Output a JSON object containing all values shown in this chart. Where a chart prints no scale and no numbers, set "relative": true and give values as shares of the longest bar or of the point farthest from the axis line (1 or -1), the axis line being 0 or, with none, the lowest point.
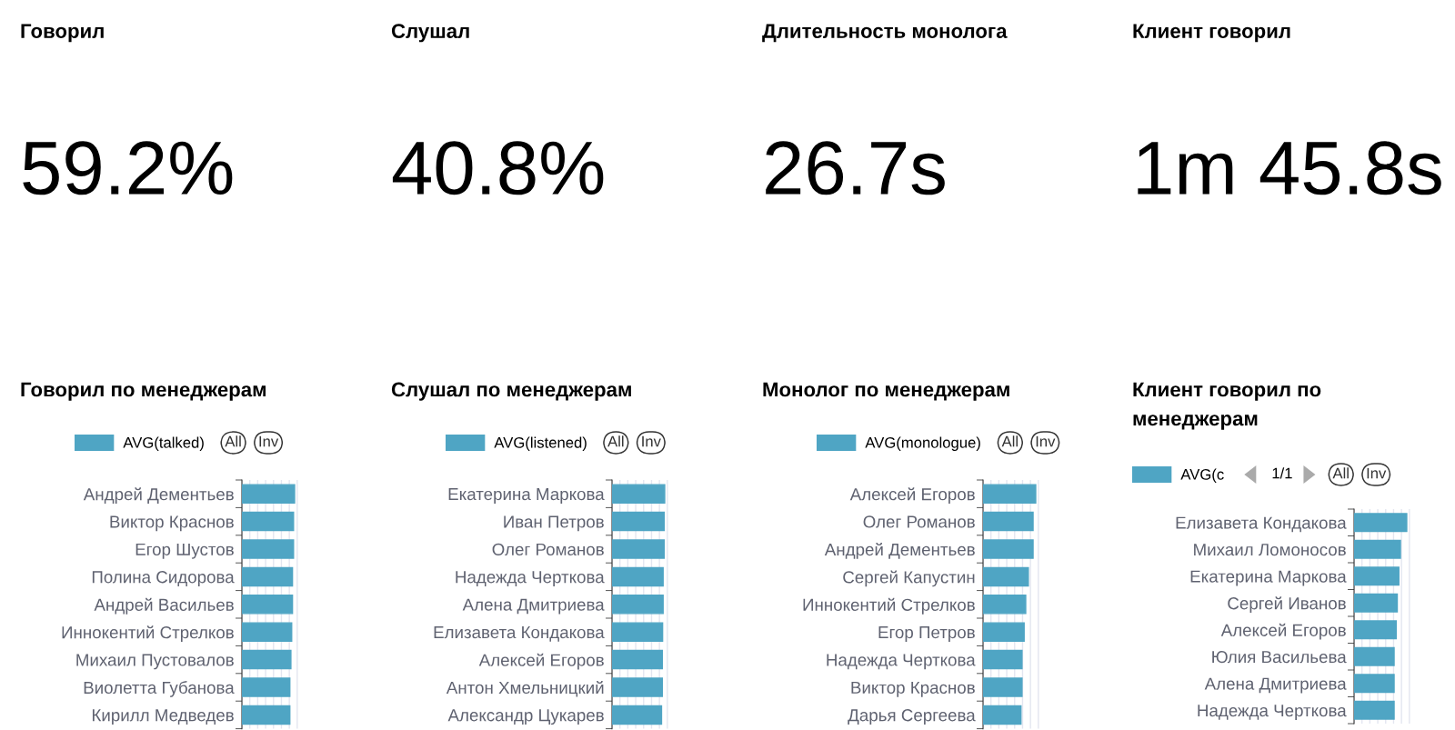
{
  "chart_data": [
    {
      "type": "other",
      "title": "Говорил",
      "annotations": [
        "59.2%"
      ]
    },
    {
      "type": "other",
      "title": "Слушал",
      "annotations": [
        "40.8%"
      ]
    },
    {
      "type": "other",
      "title": "Длительность монолога",
      "annotations": [
        "26.7s"
      ]
    },
    {
      "type": "other",
      "title": "Клиент говорил",
      "annotations": [
        "1m 45.8s"
      ]
    },
    {
      "type": "bar",
      "orientation": "horizontal",
      "relative": true,
      "title": "Говорил по менеджерам",
      "legend": "top",
      "grid": "x",
      "annotations": [
        "All",
        "Inv"
      ],
      "categories": [
        "Андрей Дементьев",
        "Виктор Краснов",
        "Егор Шустов",
        "Полина Сидорова",
        "Андрей Васильев",
        "Иннокентий Стрелков",
        "Михаил Пустовалов",
        "Виолетта Губанова",
        "Кирилл Медведев"
      ],
      "series": [
        {
          "name": "AVG(talked)",
          "color": "#4fa5c4",
          "values": [
            1,
            0.98,
            0.98,
            0.96,
            0.96,
            0.945,
            0.93,
            0.91,
            0.91
          ]
        }
      ]
    },
    {
      "type": "bar",
      "orientation": "horizontal",
      "relative": true,
      "title": "Слушал по менеджерам",
      "legend": "top",
      "grid": "x",
      "annotations": [
        "All",
        "Inv"
      ],
      "categories": [
        "Екатерина Маркова",
        "Иван Петров",
        "Олег Романов",
        "Надежда Черткова",
        "Алена Дмитриева",
        "Елизавета Кондакова",
        "Алексей Егоров",
        "Антон Хмельницкий",
        "Александр Цукарев"
      ],
      "series": [
        {
          "name": "AVG(listened)",
          "color": "#4fa5c4",
          "values": [
            1,
            0.99,
            0.99,
            0.97,
            0.97,
            0.96,
            0.955,
            0.955,
            0.94
          ]
        }
      ]
    },
    {
      "type": "bar",
      "orientation": "horizontal",
      "relative": true,
      "title": "Монолог по менеджерам",
      "legend": "top",
      "grid": "x",
      "annotations": [
        "All",
        "Inv"
      ],
      "categories": [
        "Алексей Егоров",
        "Олег Романов",
        "Андрей Дементьев",
        "Сергей Капустин",
        "Иннокентий Стрелков",
        "Егор Петров",
        "Надежда Черткова",
        "Виктор Краснов",
        "Дарья Сергеева"
      ],
      "series": [
        {
          "name": "AVG(monologue)",
          "color": "#4fa5c4",
          "values": [
            1,
            0.95,
            0.95,
            0.86,
            0.81,
            0.78,
            0.74,
            0.74,
            0.72
          ]
        }
      ]
    },
    {
      "type": "bar",
      "orientation": "horizontal",
      "relative": true,
      "title": "Клиент говорил по менеджерам",
      "legend": "top",
      "grid": "x",
      "annotations": [
        "1/1",
        "All",
        "Inv"
      ],
      "categories": [
        "Елизавета Кондакова",
        "Михаил Ломоносов",
        "Екатерина Маркова",
        "Сергей Иванов",
        "Алексей Егоров",
        "Юлия Васильева",
        "Алена Дмитриева",
        "Надежда Черткова"
      ],
      "series": [
        {
          "name": "AVG(c",
          "color": "#4fa5c4",
          "values": [
            1,
            0.88,
            0.85,
            0.82,
            0.8,
            0.76,
            0.76,
            0.76
          ]
        }
      ]
    }
  ]
}
